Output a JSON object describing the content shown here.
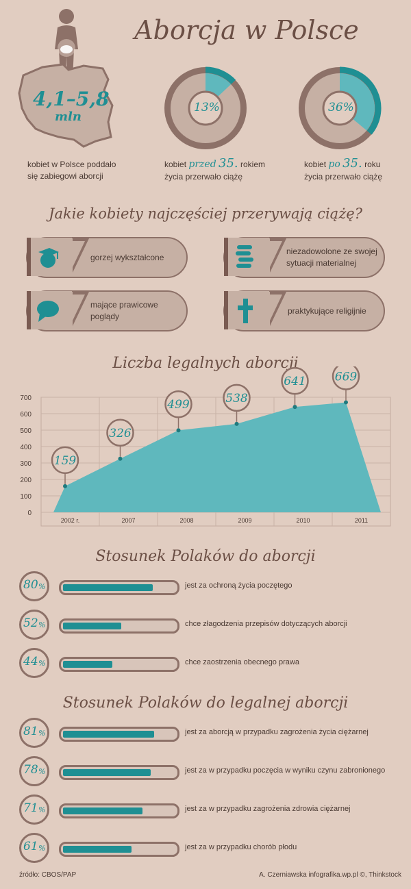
{
  "header": {
    "title": "Aborcja w Polsce"
  },
  "top_stats": {
    "count_value": "4,1–5,8",
    "count_unit": "mln",
    "count_caption_1": "kobiet w Polsce poddało",
    "count_caption_2": "się zabiegowi aborcji",
    "donut1": {
      "value": "13%",
      "pct": 13,
      "cap_a": "kobiet",
      "cap_em": "przed",
      "cap_num": "35.",
      "cap_b": "rokiem",
      "cap_2": "życia przerwało ciążę"
    },
    "donut2": {
      "value": "36%",
      "pct": 36,
      "cap_a": "kobiet",
      "cap_em": "po",
      "cap_num": "35.",
      "cap_b": "roku",
      "cap_2": "życia przerwało ciążę"
    }
  },
  "who": {
    "title": "Jakie kobiety najczęściej przerywają ciążę?",
    "items": [
      {
        "label": "gorzej wykształcone",
        "icon": "graduation-cap-icon"
      },
      {
        "label": "niezadowolone ze swojej sytuacji materialnej",
        "icon": "coins-icon"
      },
      {
        "label": "mające prawicowe poglądy",
        "icon": "speech-bubble-icon"
      },
      {
        "label": "praktykujące religijnie",
        "icon": "cross-icon"
      }
    ]
  },
  "legal": {
    "title": "Liczba legalnych aborcji"
  },
  "chart_data": [
    {
      "type": "area",
      "title": "Liczba legalnych aborcji",
      "categories": [
        "2002 r.",
        "2007",
        "2008",
        "2009",
        "2010",
        "2011"
      ],
      "values": [
        159,
        326,
        499,
        538,
        641,
        669
      ],
      "yticks": [
        0,
        100,
        200,
        300,
        400,
        500,
        600,
        700
      ],
      "ylim": [
        0,
        700
      ],
      "grid": true
    },
    {
      "type": "bar",
      "title": "Stosunek Polaków do aborcji",
      "categories": [
        "jest za ochroną życia poczętego",
        "chce złagodzenia przepisów dotyczących aborcji",
        "chce zaostrzenia obecnego prawa"
      ],
      "values": [
        80,
        52,
        44
      ],
      "unit": "%"
    },
    {
      "type": "bar",
      "title": "Stosunek Polaków do legalnej aborcji",
      "categories": [
        "jest za aborcją w przypadku zagrożenia życia ciężarnej",
        "jest za w przypadku poczęcia w wyniku czynu zabronionego",
        "jest za w przypadku zagrożenia zdrowia ciężarnej",
        "jest za w przypadku chorób płodu"
      ],
      "values": [
        81,
        78,
        71,
        61
      ],
      "unit": "%"
    }
  ],
  "attitudes": {
    "title": "Stosunek Polaków do aborcji",
    "rows": [
      {
        "pct_label": "80",
        "label": "jest za ochroną życia poczętego"
      },
      {
        "pct_label": "52",
        "label": "chce złagodzenia przepisów dotyczących aborcji"
      },
      {
        "pct_label": "44",
        "label": "chce zaostrzenia obecnego prawa"
      }
    ]
  },
  "legal_attitudes": {
    "title": "Stosunek Polaków do legalnej aborcji",
    "rows": [
      {
        "pct_label": "81",
        "label": "jest za aborcją w przypadku zagrożenia życia ciężarnej"
      },
      {
        "pct_label": "78",
        "label": "jest za w przypadku poczęcia w wyniku czynu zabronionego"
      },
      {
        "pct_label": "71",
        "label": "jest za w przypadku zagrożenia zdrowia ciężarnej"
      },
      {
        "pct_label": "61",
        "label": "jest za w przypadku chorób płodu"
      }
    ]
  },
  "footer": {
    "source": "źródło: CBOS/PAP",
    "credit": "A. Czerniawska infografika.wp.pl ©, Thinkstock"
  },
  "colors": {
    "background": "#e1cdc1",
    "teal": "#1f8f93",
    "brown": "#8d7168",
    "area": "#5fb8bd"
  }
}
